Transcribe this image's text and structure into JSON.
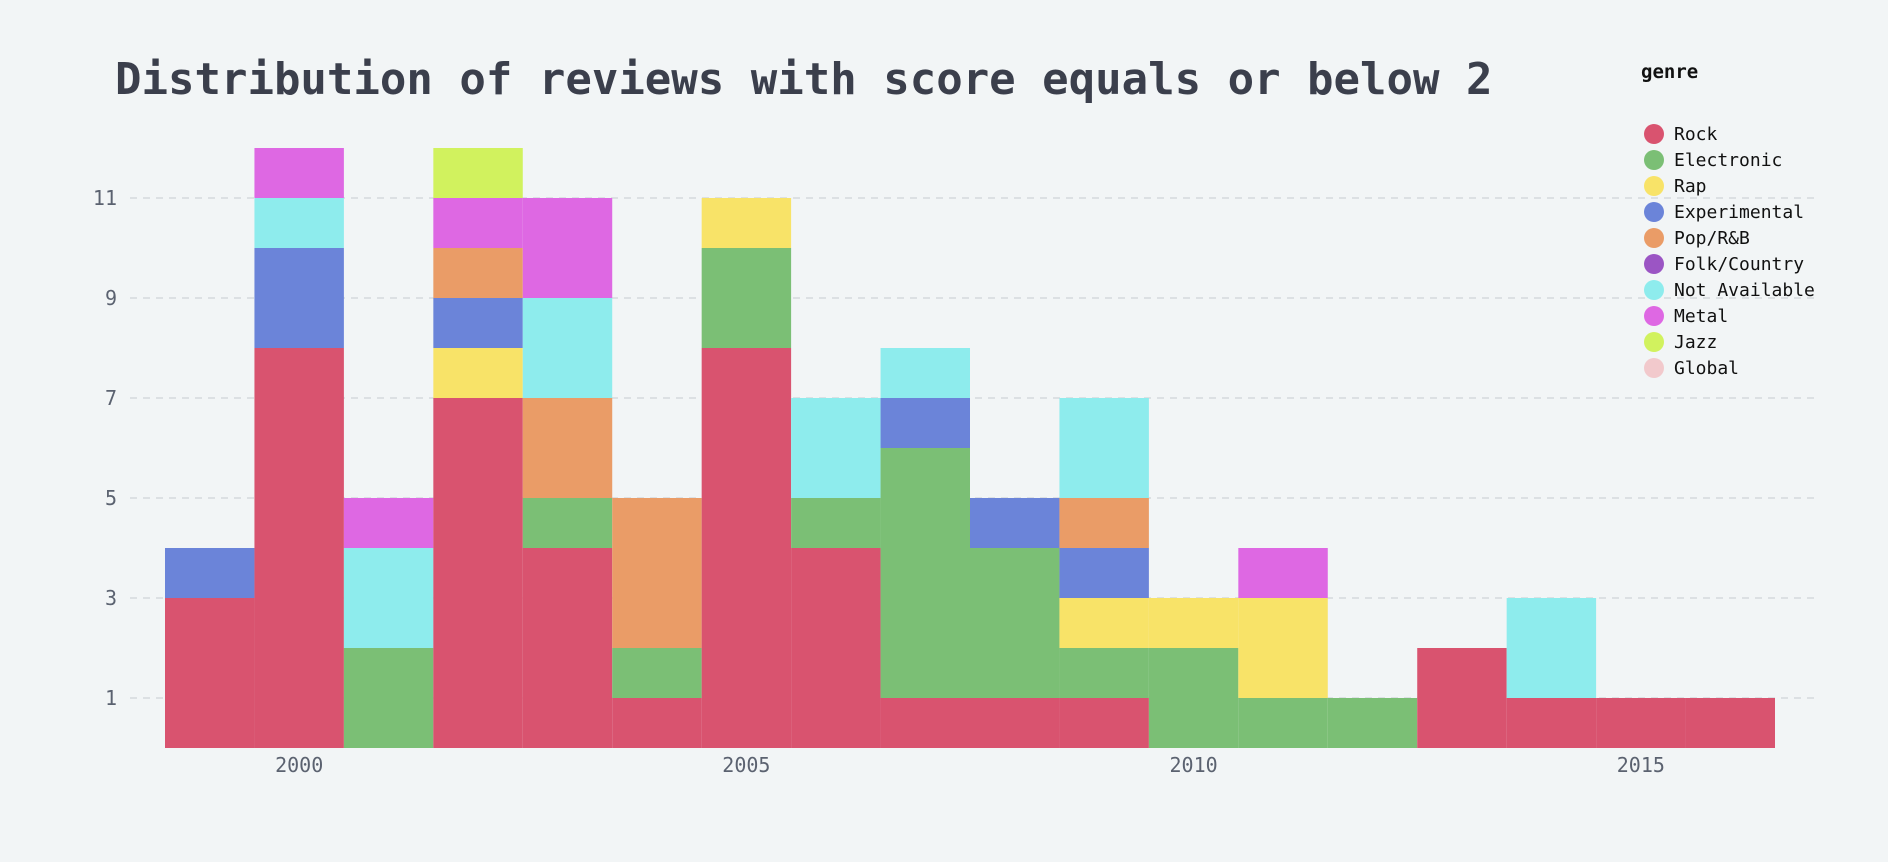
{
  "chart_data": {
    "type": "bar",
    "subtype": "stacked-histogram",
    "title": "Distribution of reviews with score equals or below 2",
    "xlabel": "",
    "ylabel": "",
    "legend_title": "genre",
    "legend_position": "top-right",
    "grid": "horizontal-dashed",
    "x_ticks": [
      "2000",
      "2005",
      "2010",
      "2015"
    ],
    "y_ticks": [
      "1",
      "3",
      "5",
      "7",
      "9",
      "11"
    ],
    "ylim": [
      0,
      12
    ],
    "x_bins": [
      1999,
      2000,
      2001,
      2002,
      2003,
      2004,
      2005,
      2006,
      2007,
      2008,
      2009,
      2010,
      2011,
      2012,
      2013,
      2014,
      2015,
      2016,
      2017
    ],
    "bin_width": 1,
    "series": [
      {
        "name": "Rock",
        "color": "#d9536f",
        "values": [
          3,
          8,
          0,
          7,
          4,
          1,
          8,
          4,
          1,
          1,
          1,
          0,
          0,
          0,
          2,
          1,
          1,
          1
        ]
      },
      {
        "name": "Electronic",
        "color": "#7bbf75",
        "values": [
          0,
          0,
          2,
          0,
          1,
          1,
          2,
          1,
          5,
          3,
          1,
          2,
          1,
          1,
          0,
          0,
          0,
          0
        ]
      },
      {
        "name": "Rap",
        "color": "#f8e368",
        "values": [
          0,
          0,
          0,
          1,
          0,
          0,
          1,
          0,
          0,
          0,
          1,
          1,
          2,
          0,
          0,
          0,
          0,
          0
        ]
      },
      {
        "name": "Experimental",
        "color": "#6b84d9",
        "values": [
          1,
          2,
          0,
          1,
          0,
          0,
          0,
          0,
          1,
          1,
          1,
          0,
          0,
          0,
          0,
          0,
          0,
          0
        ]
      },
      {
        "name": "Pop/R&B",
        "color": "#ea9c67",
        "values": [
          0,
          0,
          0,
          1,
          2,
          3,
          0,
          0,
          0,
          0,
          1,
          0,
          0,
          0,
          0,
          0,
          0,
          0
        ]
      },
      {
        "name": "Folk/Country",
        "color": "#9b55c4",
        "values": [
          0,
          0,
          0,
          0,
          0,
          0,
          0,
          0,
          0,
          0,
          0,
          0,
          0,
          0,
          0,
          0,
          0,
          0
        ]
      },
      {
        "name": "Not Available",
        "color": "#8eeced",
        "values": [
          0,
          1,
          2,
          0,
          2,
          0,
          0,
          2,
          1,
          0,
          2,
          0,
          0,
          0,
          0,
          2,
          0,
          0
        ]
      },
      {
        "name": "Metal",
        "color": "#de68e3",
        "values": [
          0,
          1,
          1,
          1,
          2,
          0,
          0,
          0,
          0,
          0,
          0,
          0,
          1,
          0,
          0,
          0,
          0,
          0
        ]
      },
      {
        "name": "Jazz",
        "color": "#d1f25e",
        "values": [
          0,
          0,
          0,
          1,
          0,
          0,
          0,
          0,
          0,
          0,
          0,
          0,
          0,
          0,
          0,
          0,
          0,
          0
        ]
      },
      {
        "name": "Global",
        "color": "#f2c9cc",
        "values": [
          0,
          0,
          0,
          0,
          0,
          0,
          0,
          0,
          0,
          0,
          0,
          0,
          0,
          0,
          0,
          0,
          0,
          0
        ]
      }
    ]
  }
}
